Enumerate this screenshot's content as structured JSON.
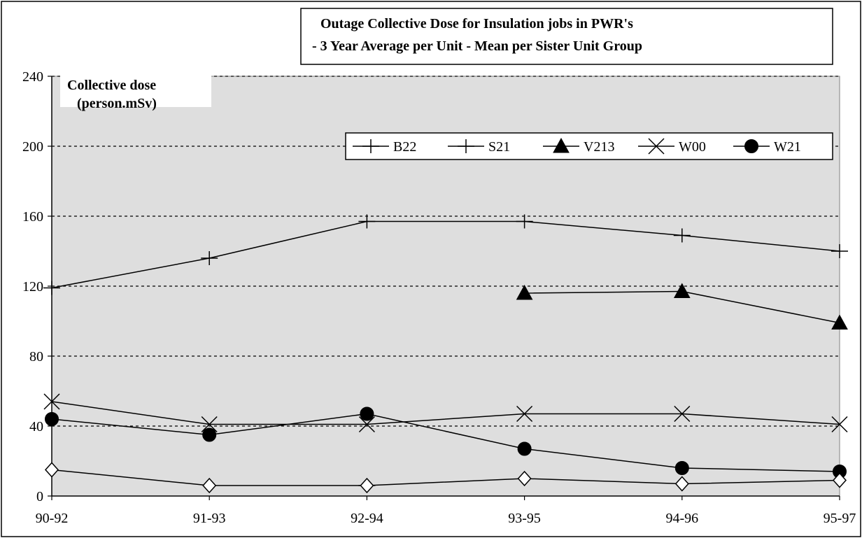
{
  "chart_data": {
    "type": "line",
    "title_lines": [
      "Outage Collective Dose for Insulation jobs in PWR's",
      "- 3 Year Average per Unit - Mean per Sister Unit Group"
    ],
    "ylabel_lines": [
      "Collective dose",
      "(person.mSv)"
    ],
    "xlabel": "",
    "categories": [
      "90-92",
      "91-93",
      "92-94",
      "93-95",
      "94-96",
      "95-97"
    ],
    "ylim": [
      0,
      240
    ],
    "yticks": [
      0,
      40,
      80,
      120,
      160,
      200,
      240
    ],
    "grid": true,
    "legend_position": "top-right",
    "series": [
      {
        "name": "B22",
        "marker": "plus",
        "values": [
          119,
          136,
          157,
          157,
          149,
          140
        ]
      },
      {
        "name": "S21",
        "marker": "plus",
        "values": [
          null,
          null,
          6,
          null,
          null,
          null
        ]
      },
      {
        "name": "V213",
        "marker": "triangle",
        "values": [
          null,
          null,
          null,
          116,
          117,
          99
        ]
      },
      {
        "name": "W00",
        "marker": "x",
        "values": [
          54,
          41,
          41,
          47,
          47,
          41
        ]
      },
      {
        "name": "W21",
        "marker": "circle",
        "values": [
          44,
          35,
          47,
          27,
          16,
          14
        ]
      },
      {
        "name": "",
        "marker": "diamond",
        "values": [
          15,
          6,
          6,
          10,
          7,
          9
        ]
      }
    ]
  }
}
